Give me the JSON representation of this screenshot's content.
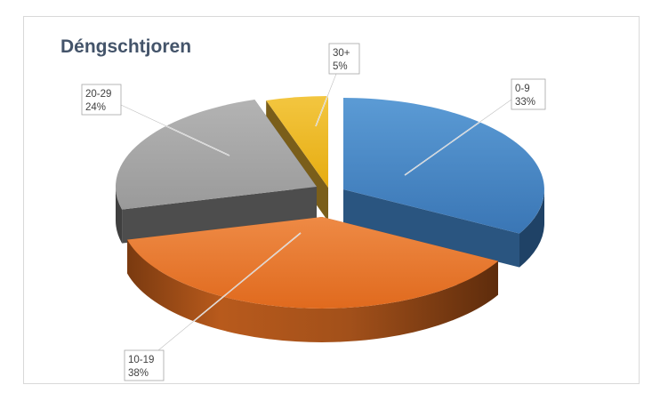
{
  "chart_data": {
    "type": "pie",
    "title": "Déngschtjoren",
    "categories": [
      "0-9",
      "10-19",
      "20-29",
      "30+"
    ],
    "values": [
      33,
      38,
      24,
      5
    ],
    "value_labels": [
      "33%",
      "38%",
      "24%",
      "5%"
    ],
    "colors": [
      "#4a88c8",
      "#ec7a30",
      "#a5a5a5",
      "#f0b923"
    ],
    "style": "3d-exploded",
    "legend": "none",
    "data_labels": "callouts with category and percentage"
  }
}
